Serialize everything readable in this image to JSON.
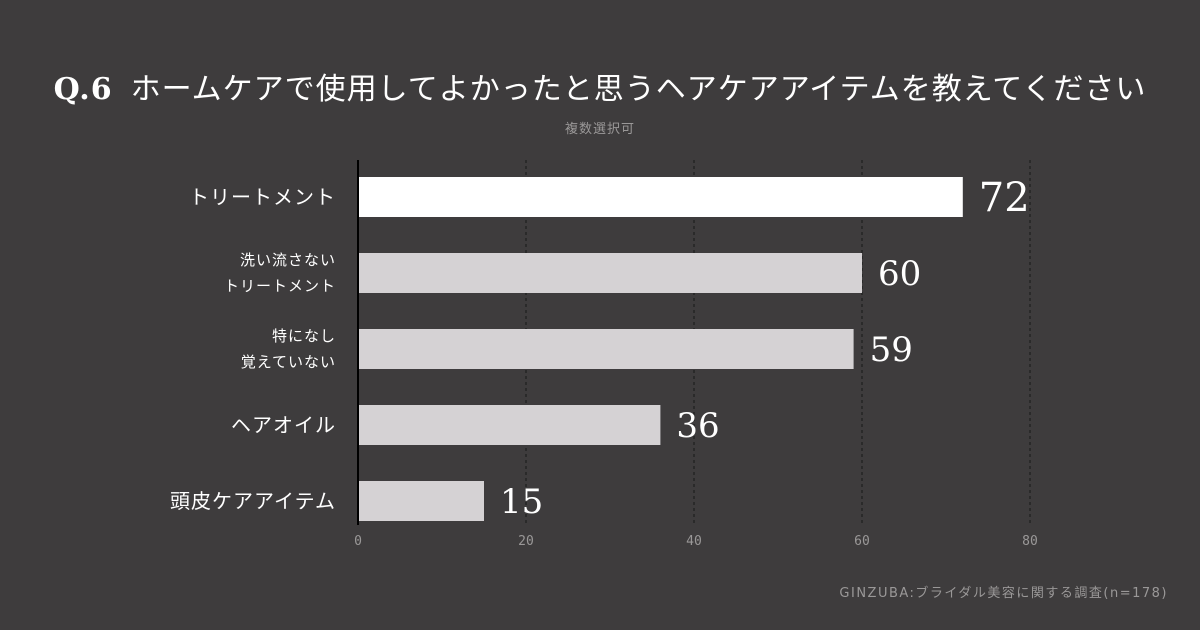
{
  "header": {
    "question_number": "Q.6",
    "question_text": "ホームケアで使用してよかったと思うヘアケアアイテムを教えてください",
    "subtitle": "複数選択可"
  },
  "source": "GINZUBA:ブライダル美容に関する調査(n=178)",
  "colors": {
    "background": "#3e3c3d",
    "highlight_bar": "#ffffff",
    "bar": "#d5d2d4",
    "grid": "#1e1e1e",
    "text": "#ffffff",
    "muted_text": "#9a9898"
  },
  "chart_data": {
    "type": "bar",
    "orientation": "horizontal",
    "categories": [
      [
        "トリートメント"
      ],
      [
        "洗い流さない",
        "トリートメント"
      ],
      [
        "特になし",
        "覚えていない"
      ],
      [
        "ヘアオイル"
      ],
      [
        "頭皮ケアアイテム"
      ]
    ],
    "values": [
      72,
      60,
      59,
      36,
      15
    ],
    "highlight_index": 0,
    "xlim": [
      0,
      80
    ],
    "xticks": [
      0,
      20,
      40,
      60,
      80
    ],
    "grid": "vertical dashed",
    "title": "",
    "xlabel": "",
    "ylabel": ""
  }
}
